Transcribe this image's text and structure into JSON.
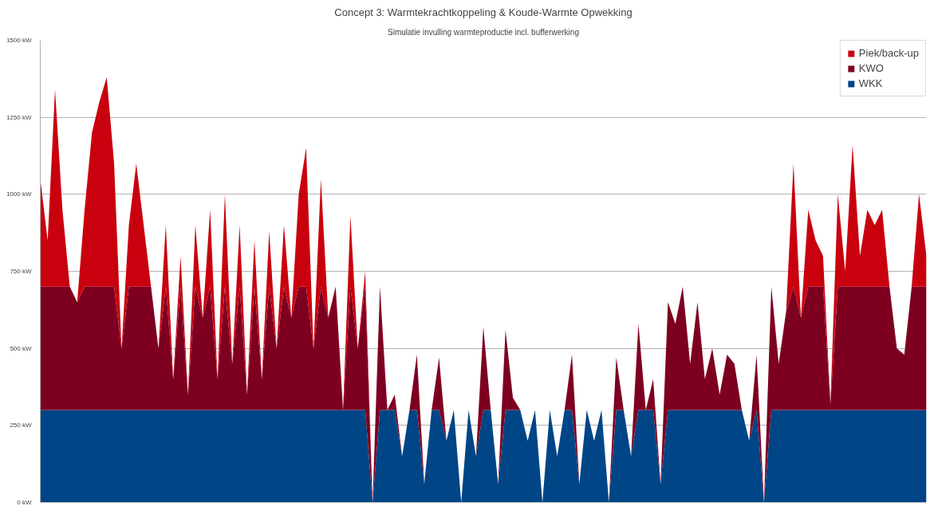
{
  "chart_data": {
    "type": "area",
    "title": "Concept 3: Warmtekrachtkoppeling & Koude-Warmte Opwekking",
    "subtitle": "Simulatie invulling warmteproductie incl. bufferwerking",
    "stacked": true,
    "legend": "top right",
    "grid": "y",
    "categories": [
      null,
      null,
      null,
      null,
      null,
      null,
      null,
      null,
      null,
      null,
      null,
      null,
      null,
      null,
      null,
      null,
      null,
      null,
      null,
      null,
      null,
      null,
      null,
      null,
      null,
      null,
      null,
      null,
      null,
      null,
      null,
      null,
      null,
      null,
      null,
      null,
      null,
      null,
      null,
      null,
      null,
      null,
      null,
      null,
      null,
      null,
      null,
      null,
      null,
      null,
      null,
      null,
      null,
      null,
      null,
      null,
      null,
      null,
      null,
      null,
      null,
      null,
      null,
      null,
      null,
      null,
      null,
      null,
      null,
      null,
      null,
      null,
      null,
      null,
      null,
      null,
      null,
      null,
      null,
      null,
      null,
      null,
      null,
      null,
      null,
      null,
      null,
      null,
      null,
      null,
      null,
      null,
      null,
      null,
      null,
      null,
      null,
      null,
      null,
      null,
      null,
      null,
      null,
      null,
      null,
      null,
      null,
      null,
      null,
      null,
      null,
      null,
      null,
      null,
      null,
      null,
      null,
      null,
      null,
      null,
      null
    ],
    "ylim": [
      0,
      1500
    ],
    "yticks": [
      {
        "value": 0,
        "label": "0 kW"
      },
      {
        "value": 250,
        "label": "250 kW"
      },
      {
        "value": 500,
        "label": "500 kW"
      },
      {
        "value": 750,
        "label": "750 kW"
      },
      {
        "value": 1000,
        "label": "1000 kW"
      },
      {
        "value": 1250,
        "label": "1250 kW"
      },
      {
        "value": 1500,
        "label": "1500 kW"
      }
    ],
    "series": [
      {
        "name": "WKK",
        "color": "#004586",
        "values": [
          300,
          300,
          300,
          300,
          300,
          300,
          300,
          300,
          300,
          300,
          300,
          300,
          300,
          300,
          300,
          300,
          300,
          300,
          300,
          300,
          300,
          300,
          300,
          300,
          300,
          300,
          300,
          300,
          300,
          300,
          300,
          300,
          300,
          300,
          300,
          300,
          300,
          300,
          300,
          300,
          300,
          300,
          300,
          300,
          300,
          0,
          300,
          300,
          300,
          150,
          300,
          300,
          60,
          300,
          300,
          200,
          300,
          0,
          300,
          150,
          300,
          300,
          60,
          300,
          300,
          300,
          200,
          300,
          0,
          300,
          150,
          300,
          300,
          60,
          300,
          200,
          300,
          0,
          300,
          300,
          150,
          300,
          300,
          300,
          60,
          300,
          300,
          300,
          300,
          300,
          300,
          300,
          300,
          300,
          300,
          300,
          200,
          300,
          0,
          300,
          300,
          300,
          300,
          300,
          300,
          300,
          300,
          300,
          300,
          300,
          300,
          300,
          300,
          300,
          300,
          300,
          300,
          300,
          300,
          300,
          300
        ]
      },
      {
        "name": "KWO",
        "color": "#7e0021",
        "values": [
          400,
          400,
          400,
          400,
          400,
          350,
          400,
          400,
          400,
          400,
          400,
          200,
          400,
          400,
          400,
          400,
          200,
          400,
          100,
          400,
          50,
          400,
          300,
          400,
          100,
          400,
          150,
          400,
          50,
          400,
          100,
          400,
          200,
          400,
          300,
          400,
          400,
          200,
          400,
          300,
          400,
          0,
          400,
          200,
          400,
          0,
          400,
          0,
          50,
          0,
          0,
          180,
          0,
          0,
          170,
          0,
          0,
          0,
          0,
          0,
          270,
          0,
          0,
          260,
          40,
          0,
          0,
          0,
          0,
          0,
          0,
          0,
          180,
          0,
          0,
          0,
          0,
          0,
          170,
          0,
          0,
          280,
          0,
          100,
          0,
          350,
          280,
          400,
          150,
          350,
          100,
          200,
          50,
          180,
          150,
          0,
          0,
          180,
          0,
          400,
          150,
          320,
          400,
          300,
          400,
          400,
          400,
          20,
          400,
          400,
          400,
          400,
          400,
          400,
          400,
          400,
          200,
          180,
          400,
          400,
          400
        ]
      },
      {
        "name": "Piek/back-up",
        "color": "#c9000e",
        "values": [
          350,
          150,
          640,
          250,
          0,
          0,
          250,
          500,
          600,
          680,
          400,
          0,
          200,
          400,
          200,
          0,
          0,
          200,
          0,
          100,
          0,
          200,
          0,
          250,
          0,
          300,
          0,
          200,
          0,
          150,
          0,
          180,
          0,
          200,
          0,
          300,
          450,
          0,
          350,
          0,
          0,
          0,
          230,
          0,
          50,
          0,
          0,
          0,
          0,
          0,
          0,
          0,
          0,
          0,
          0,
          0,
          0,
          0,
          0,
          0,
          0,
          0,
          0,
          0,
          0,
          0,
          0,
          0,
          0,
          0,
          0,
          0,
          0,
          0,
          0,
          0,
          0,
          0,
          0,
          0,
          0,
          0,
          0,
          0,
          0,
          0,
          0,
          0,
          0,
          0,
          0,
          0,
          0,
          0,
          0,
          0,
          0,
          0,
          0,
          0,
          0,
          0,
          400,
          0,
          250,
          150,
          100,
          0,
          300,
          50,
          460,
          100,
          250,
          200,
          250,
          0,
          0,
          0,
          0,
          300,
          100
        ]
      }
    ]
  }
}
